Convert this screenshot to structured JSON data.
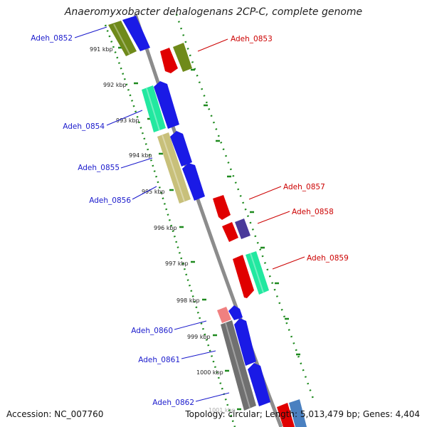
{
  "title": "Anaeromyxobacter dehalogenans 2CP-C, complete genome",
  "footer": {
    "accession": "Accession: NC_007760",
    "summary": "Topology: circular; Length: 5,013,479 bp; Genes: 4,404"
  },
  "colors": {
    "forward_label": "#cc0000",
    "reverse_label": "#1a1acc",
    "backbone": "#8c8c8c",
    "tick_ring": "#1e8a1e",
    "red_gene": "#e00000",
    "blue_gene": "#1a1ae6",
    "olive_gene": "#6f8a1a",
    "mint_gene": "#22e8a0",
    "khaki_gene": "#c8c07a",
    "purple_gene": "#4a3a9a",
    "pink_gene": "#f08080",
    "gray_gene": "#707070",
    "steelblue_gene": "#4a80c0"
  },
  "ticks": [
    "991 kbp",
    "992 kbp",
    "993 kbp",
    "994 kbp",
    "995 kbp",
    "996 kbp",
    "997 kbp",
    "998 kbp",
    "999 kbp",
    "1000 kbp",
    "1001 kbp"
  ],
  "forward_labels": [
    "Adeh_0853",
    "Adeh_0857",
    "Adeh_0858",
    "Adeh_0859"
  ],
  "reverse_labels": [
    "Adeh_0852",
    "Adeh_0854",
    "Adeh_0855",
    "Adeh_0856",
    "Adeh_0860",
    "Adeh_0861",
    "Adeh_0862"
  ]
}
